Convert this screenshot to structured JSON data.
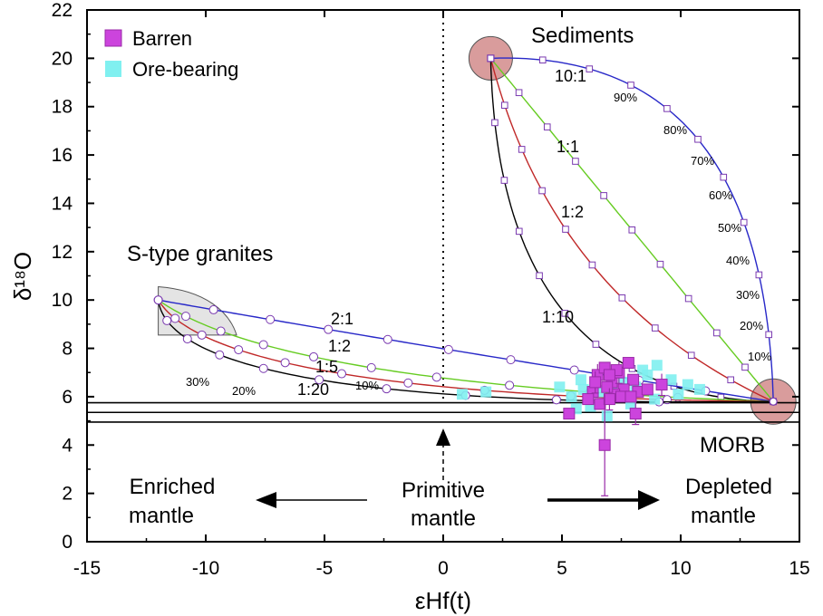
{
  "colors": {
    "barren": "#cc44dd",
    "barren_edge": "#9a2aa8",
    "ore": "#80f0f0",
    "blue_curve": "#2828c8",
    "green_curve": "#66cc22",
    "red_curve": "#c02828",
    "black_curve": "#000000",
    "endmember_fill": "#d99c9c",
    "granite_fill": "#e4e4e4"
  },
  "chart_data": {
    "type": "scatter",
    "xlabel": "εHf(t)",
    "ylabel": "δ¹⁸O",
    "xlim": [
      -15,
      15
    ],
    "ylim": [
      0,
      22
    ],
    "xticks": [
      "-15",
      "-10",
      "-5",
      "0",
      "5",
      "10",
      "15"
    ],
    "yticks": [
      "0",
      "2",
      "4",
      "6",
      "8",
      "10",
      "12",
      "14",
      "16",
      "18",
      "20",
      "22"
    ],
    "legend": [
      {
        "name": "Barren",
        "marker": "square",
        "color": "#cc44dd"
      },
      {
        "name": "Ore-bearing",
        "marker": "square",
        "color": "#80f0f0"
      }
    ],
    "legend_position": "top-left",
    "endmembers": {
      "sediments": {
        "label": "Sediments",
        "x": 2.0,
        "y": 20.0
      },
      "mantle": {
        "x": 13.9,
        "y": 5.8
      },
      "s_type_granites": {
        "label": "S-type granites",
        "x": -12.0,
        "y": 10.0
      }
    },
    "morb_band": {
      "label": "MORB",
      "lines_y": [
        5.75,
        5.35,
        4.95
      ]
    },
    "primitive_mantle_x": 0,
    "annotations": {
      "primitive": "Primitive mantle",
      "enriched": "Enriched mantle",
      "depleted": "Depleted mantle"
    },
    "sediment_mixing": {
      "ratios": [
        "10:1",
        "1:1",
        "1:2",
        "1:10"
      ],
      "percent_labels": [
        "90%",
        "80%",
        "70%",
        "60%",
        "50%",
        "40%",
        "30%",
        "20%",
        "10%"
      ]
    },
    "granite_mixing": {
      "ratios": [
        "2:1",
        "1:2",
        "1:5",
        "1:20"
      ],
      "percent_labels": [
        "30%",
        "20%",
        "10%"
      ]
    },
    "series": [
      {
        "name": "Barren",
        "points": [
          {
            "x": 6.5,
            "y": 6.9
          },
          {
            "x": 6.8,
            "y": 7.2
          },
          {
            "x": 7.1,
            "y": 6.6
          },
          {
            "x": 7.4,
            "y": 7.0
          },
          {
            "x": 7.8,
            "y": 7.4
          },
          {
            "x": 8.0,
            "y": 6.7
          },
          {
            "x": 7.6,
            "y": 6.3
          },
          {
            "x": 7.2,
            "y": 6.1
          },
          {
            "x": 6.9,
            "y": 6.4
          },
          {
            "x": 6.3,
            "y": 6.2
          },
          {
            "x": 6.1,
            "y": 5.9
          },
          {
            "x": 6.6,
            "y": 5.7
          },
          {
            "x": 7.0,
            "y": 5.9
          },
          {
            "x": 7.5,
            "y": 6.0
          },
          {
            "x": 8.2,
            "y": 6.2
          },
          {
            "x": 9.2,
            "y": 6.5
          },
          {
            "x": 8.6,
            "y": 6.3
          },
          {
            "x": 5.3,
            "y": 5.3
          },
          {
            "x": 8.1,
            "y": 5.3
          },
          {
            "x": 6.8,
            "y": 4.0
          },
          {
            "x": 7.3,
            "y": 7.1
          },
          {
            "x": 6.4,
            "y": 6.6
          },
          {
            "x": 7.9,
            "y": 6.0
          },
          {
            "x": 7.0,
            "y": 6.9
          }
        ]
      },
      {
        "name": "Ore-bearing",
        "points": [
          {
            "x": 0.8,
            "y": 6.1
          },
          {
            "x": 1.8,
            "y": 6.2
          },
          {
            "x": 4.9,
            "y": 6.4
          },
          {
            "x": 5.4,
            "y": 6.0
          },
          {
            "x": 5.9,
            "y": 6.3
          },
          {
            "x": 6.2,
            "y": 5.6
          },
          {
            "x": 5.6,
            "y": 5.5
          },
          {
            "x": 6.6,
            "y": 6.2
          },
          {
            "x": 7.1,
            "y": 6.4
          },
          {
            "x": 7.6,
            "y": 6.6
          },
          {
            "x": 8.1,
            "y": 6.4
          },
          {
            "x": 8.6,
            "y": 6.9
          },
          {
            "x": 9.0,
            "y": 7.3
          },
          {
            "x": 9.6,
            "y": 6.7
          },
          {
            "x": 10.3,
            "y": 6.5
          },
          {
            "x": 10.8,
            "y": 6.3
          },
          {
            "x": 9.9,
            "y": 6.1
          },
          {
            "x": 8.9,
            "y": 5.9
          },
          {
            "x": 7.9,
            "y": 5.7
          },
          {
            "x": 6.9,
            "y": 5.2
          },
          {
            "x": 5.8,
            "y": 6.7
          },
          {
            "x": 8.4,
            "y": 7.1
          }
        ]
      }
    ]
  }
}
